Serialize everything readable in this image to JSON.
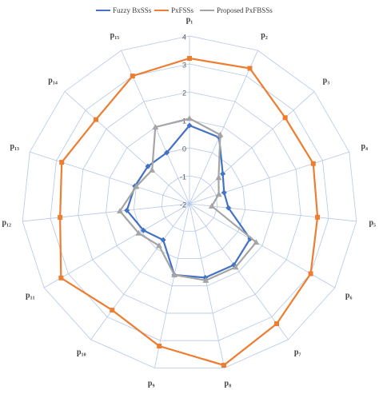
{
  "chart_data": {
    "type": "radar",
    "categories": [
      "p₁",
      "p₂",
      "p₃",
      "p₄",
      "p₅",
      "p₆",
      "p₇",
      "p₈",
      "p₉",
      "p₁₀",
      "p₁₁",
      "p₁₂",
      "p₁₃",
      "p₁₄",
      "p₁₅"
    ],
    "series": [
      {
        "name": "Fuzzy BxSSs",
        "color": "#4472c4",
        "marker": "diamond",
        "values": [
          0.8,
          0.6,
          -0.4,
          -0.7,
          -0.6,
          0.5,
          0.7,
          0.7,
          0.6,
          -0.4,
          -0.1,
          0.25,
          0.05,
          0.0,
          0.0
        ]
      },
      {
        "name": "PxFSSs",
        "color": "#ed7d31",
        "marker": "square",
        "values": [
          3.2,
          3.3,
          2.6,
          2.65,
          2.6,
          3.0,
          3.3,
          3.9,
          3.2,
          2.7,
          3.3,
          2.65,
          2.8,
          2.5,
          3.0
        ]
      },
      {
        "name": "Proposed PxFBSSs",
        "color": "#a5a5a5",
        "marker": "triangle",
        "values": [
          1.05,
          0.7,
          -0.6,
          -0.9,
          -1.2,
          0.75,
          0.8,
          0.8,
          0.6,
          -0.15,
          0.1,
          0.5,
          0.0,
          -0.2,
          1.0
        ]
      }
    ],
    "ylim": [
      -2,
      4
    ],
    "yticks": [
      -2,
      -1,
      0,
      1,
      2,
      3,
      4
    ],
    "grid": true,
    "legend": "top"
  }
}
